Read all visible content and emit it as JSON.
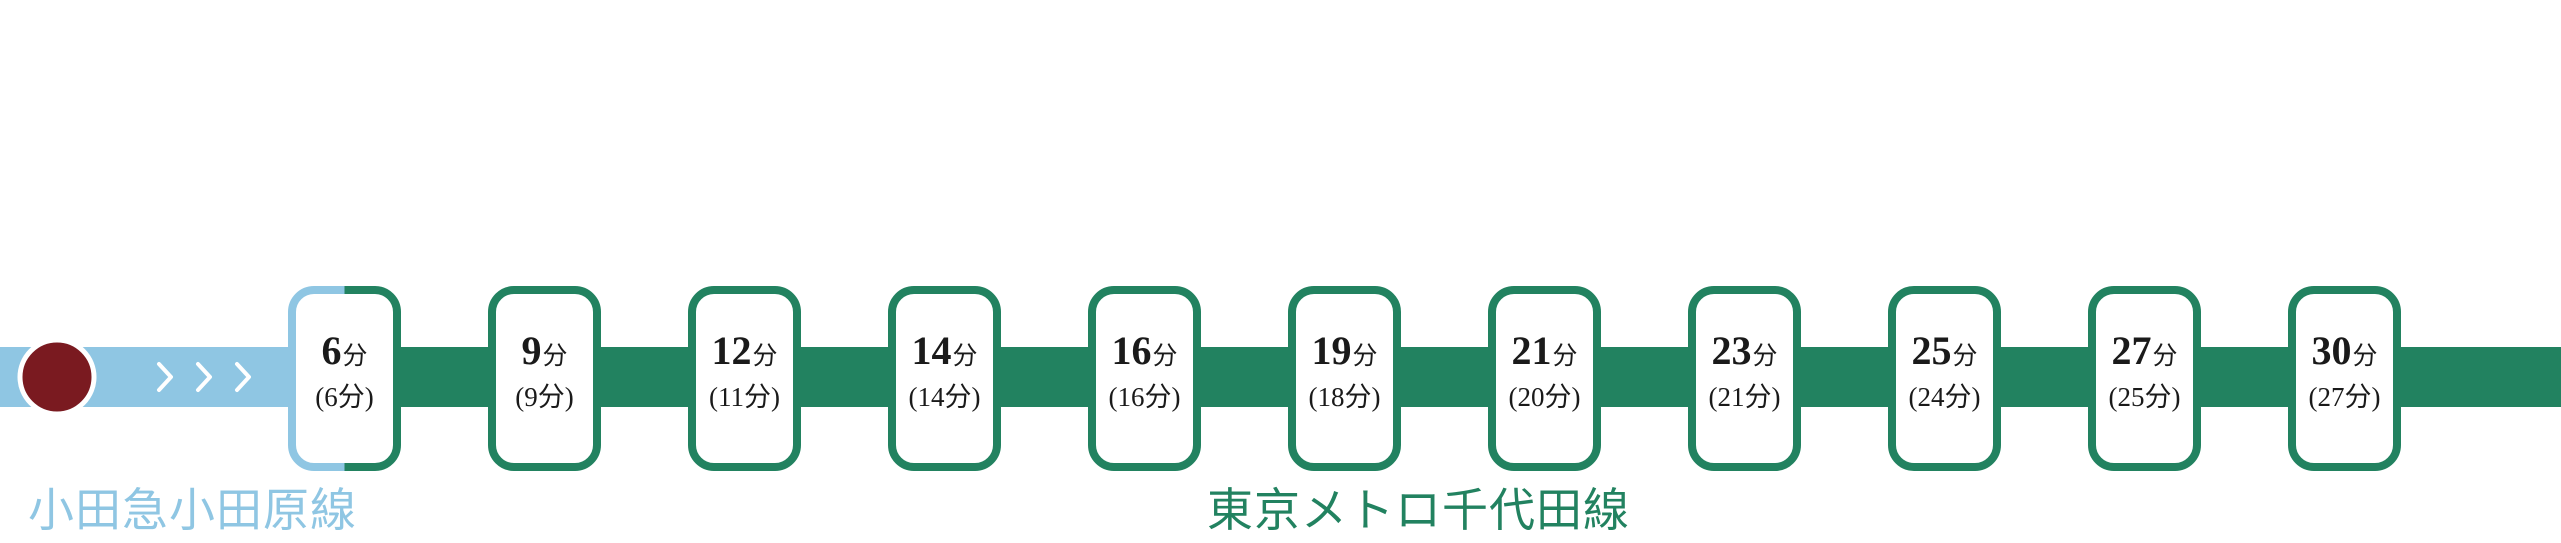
{
  "lines": {
    "odakyu": {
      "name": "小田急小田原線",
      "color": "#8fc6e3"
    },
    "chiyoda": {
      "name": "東京メトロ千代田線",
      "color": "#228260"
    }
  },
  "origin_station": {
    "color": "#7a1a20"
  },
  "unit": "分",
  "stops": [
    {
      "main": "6",
      "sub": "(6分)"
    },
    {
      "main": "9",
      "sub": "(9分)"
    },
    {
      "main": "12",
      "sub": "(11分)"
    },
    {
      "main": "14",
      "sub": "(14分)"
    },
    {
      "main": "16",
      "sub": "(16分)"
    },
    {
      "main": "19",
      "sub": "(18分)"
    },
    {
      "main": "21",
      "sub": "(20分)"
    },
    {
      "main": "23",
      "sub": "(21分)"
    },
    {
      "main": "25",
      "sub": "(24分)"
    },
    {
      "main": "27",
      "sub": "(25分)"
    },
    {
      "main": "30",
      "sub": "(27分)"
    }
  ]
}
